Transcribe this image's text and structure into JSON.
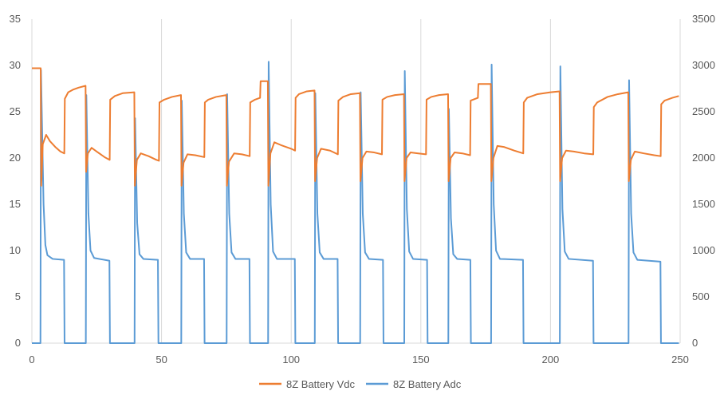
{
  "chart_data": {
    "type": "line",
    "title": "",
    "xlabel": "",
    "ylabel": "",
    "y2label": "",
    "xlim": [
      0,
      250
    ],
    "ylim": [
      0,
      35
    ],
    "y2lim": [
      0,
      3500
    ],
    "x_ticks": [
      0,
      50,
      100,
      150,
      200,
      250
    ],
    "y_ticks": [
      0,
      5,
      10,
      15,
      20,
      25,
      30,
      35
    ],
    "y2_ticks": [
      0,
      500,
      1000,
      1500,
      2000,
      2500,
      3000,
      3500
    ],
    "grid": "vertical",
    "legend_position": "bottom",
    "series": [
      {
        "name": "8Z Battery Vdc",
        "axis": "left",
        "color": "#ED7D31",
        "points": [
          [
            0,
            29.7
          ],
          [
            3.4,
            29.7
          ],
          [
            3.6,
            17.0
          ],
          [
            4.2,
            21.5
          ],
          [
            5.5,
            22.5
          ],
          [
            7,
            21.8
          ],
          [
            9,
            21.2
          ],
          [
            11,
            20.7
          ],
          [
            12.5,
            20.5
          ],
          [
            12.7,
            26.4
          ],
          [
            14,
            27.1
          ],
          [
            16,
            27.4
          ],
          [
            18,
            27.6
          ],
          [
            20.7,
            27.8
          ],
          [
            20.9,
            18.5
          ],
          [
            21.6,
            20.5
          ],
          [
            23,
            21.1
          ],
          [
            25,
            20.7
          ],
          [
            28,
            20.1
          ],
          [
            30,
            19.8
          ],
          [
            30.2,
            26.3
          ],
          [
            32,
            26.7
          ],
          [
            35,
            27.0
          ],
          [
            39.5,
            27.1
          ],
          [
            39.7,
            17.0
          ],
          [
            40.5,
            19.8
          ],
          [
            42,
            20.5
          ],
          [
            45,
            20.2
          ],
          [
            48,
            19.8
          ],
          [
            49,
            19.7
          ],
          [
            49.2,
            26.0
          ],
          [
            51,
            26.3
          ],
          [
            54,
            26.6
          ],
          [
            57.5,
            26.8
          ],
          [
            57.7,
            17.0
          ],
          [
            58.5,
            19.5
          ],
          [
            60,
            20.4
          ],
          [
            63,
            20.3
          ],
          [
            66.5,
            20.1
          ],
          [
            66.7,
            26.0
          ],
          [
            68,
            26.3
          ],
          [
            71,
            26.6
          ],
          [
            75,
            26.8
          ],
          [
            75.2,
            17.0
          ],
          [
            76,
            19.6
          ],
          [
            78,
            20.5
          ],
          [
            81,
            20.4
          ],
          [
            84,
            20.2
          ],
          [
            84.2,
            26.0
          ],
          [
            86,
            26.3
          ],
          [
            88,
            26.5
          ],
          [
            88.2,
            28.3
          ],
          [
            91,
            28.3
          ],
          [
            91.2,
            17.0
          ],
          [
            92,
            20.5
          ],
          [
            93.5,
            21.7
          ],
          [
            96,
            21.4
          ],
          [
            100,
            21.0
          ],
          [
            101.5,
            20.8
          ],
          [
            101.7,
            26.5
          ],
          [
            103,
            26.9
          ],
          [
            106,
            27.2
          ],
          [
            109,
            27.3
          ],
          [
            109.2,
            17.5
          ],
          [
            110,
            20.0
          ],
          [
            111.5,
            21.0
          ],
          [
            115,
            20.8
          ],
          [
            118,
            20.4
          ],
          [
            118.2,
            26.2
          ],
          [
            120,
            26.6
          ],
          [
            123,
            26.9
          ],
          [
            126.5,
            27.0
          ],
          [
            126.7,
            17.5
          ],
          [
            127.5,
            20.0
          ],
          [
            129,
            20.7
          ],
          [
            132,
            20.6
          ],
          [
            135,
            20.4
          ],
          [
            135.2,
            26.3
          ],
          [
            137,
            26.6
          ],
          [
            140,
            26.8
          ],
          [
            143.5,
            26.9
          ],
          [
            143.7,
            17.5
          ],
          [
            144.5,
            20.0
          ],
          [
            146,
            20.6
          ],
          [
            149,
            20.5
          ],
          [
            152,
            20.4
          ],
          [
            152.2,
            26.3
          ],
          [
            154,
            26.6
          ],
          [
            157,
            26.8
          ],
          [
            160.5,
            26.9
          ],
          [
            160.7,
            17.5
          ],
          [
            161.5,
            20.0
          ],
          [
            163,
            20.6
          ],
          [
            166,
            20.5
          ],
          [
            169,
            20.3
          ],
          [
            169.2,
            26.2
          ],
          [
            171,
            26.4
          ],
          [
            172,
            26.5
          ],
          [
            172.2,
            28.0
          ],
          [
            177,
            28.0
          ],
          [
            177.2,
            17.5
          ],
          [
            178,
            20.0
          ],
          [
            179.5,
            21.3
          ],
          [
            182,
            21.2
          ],
          [
            186,
            20.8
          ],
          [
            189.5,
            20.5
          ],
          [
            189.7,
            26.0
          ],
          [
            191,
            26.5
          ],
          [
            195,
            26.9
          ],
          [
            200,
            27.1
          ],
          [
            203.5,
            27.2
          ],
          [
            203.7,
            17.5
          ],
          [
            204.5,
            20.0
          ],
          [
            206,
            20.8
          ],
          [
            209,
            20.7
          ],
          [
            213,
            20.5
          ],
          [
            216.5,
            20.4
          ],
          [
            216.7,
            25.5
          ],
          [
            218,
            26.0
          ],
          [
            222,
            26.6
          ],
          [
            226,
            26.9
          ],
          [
            230,
            27.1
          ],
          [
            230.2,
            17.5
          ],
          [
            231,
            19.8
          ],
          [
            232.5,
            20.7
          ],
          [
            236,
            20.5
          ],
          [
            240,
            20.3
          ],
          [
            242.5,
            20.2
          ],
          [
            242.7,
            25.8
          ],
          [
            244,
            26.2
          ],
          [
            247,
            26.5
          ],
          [
            249.5,
            26.7
          ]
        ]
      },
      {
        "name": "8Z Battery Adc",
        "axis": "right",
        "color": "#5B9BD5",
        "points": [
          [
            0,
            0
          ],
          [
            3.3,
            0
          ],
          [
            3.5,
            2950
          ],
          [
            4.5,
            1500
          ],
          [
            5.2,
            1060
          ],
          [
            6,
            950
          ],
          [
            8,
            910
          ],
          [
            12.4,
            900
          ],
          [
            12.6,
            0
          ],
          [
            20.8,
            0
          ],
          [
            21.0,
            2680
          ],
          [
            21.8,
            1400
          ],
          [
            22.6,
            1000
          ],
          [
            24,
            920
          ],
          [
            29.9,
            890
          ],
          [
            30.1,
            0
          ],
          [
            39.6,
            0
          ],
          [
            39.8,
            2430
          ],
          [
            40.6,
            1300
          ],
          [
            41.5,
            960
          ],
          [
            43,
            910
          ],
          [
            48.6,
            900
          ],
          [
            48.8,
            0
          ],
          [
            57.6,
            0
          ],
          [
            57.8,
            2620
          ],
          [
            58.6,
            1400
          ],
          [
            59.5,
            980
          ],
          [
            61,
            910
          ],
          [
            66.4,
            910
          ],
          [
            66.6,
            0
          ],
          [
            75.1,
            0
          ],
          [
            75.3,
            2690
          ],
          [
            76.1,
            1400
          ],
          [
            77,
            980
          ],
          [
            78.5,
            910
          ],
          [
            83.9,
            910
          ],
          [
            84.1,
            0
          ],
          [
            91.1,
            0
          ],
          [
            91.3,
            3040
          ],
          [
            92.1,
            1500
          ],
          [
            93,
            990
          ],
          [
            94.5,
            910
          ],
          [
            101.4,
            910
          ],
          [
            101.6,
            0
          ],
          [
            109.1,
            0
          ],
          [
            109.3,
            2700
          ],
          [
            110.1,
            1400
          ],
          [
            111,
            980
          ],
          [
            112.5,
            910
          ],
          [
            117.9,
            910
          ],
          [
            118.1,
            0
          ],
          [
            126.6,
            0
          ],
          [
            126.8,
            2710
          ],
          [
            127.6,
            1400
          ],
          [
            128.5,
            980
          ],
          [
            130,
            910
          ],
          [
            135.4,
            900
          ],
          [
            135.6,
            0
          ],
          [
            143.6,
            0
          ],
          [
            143.8,
            2940
          ],
          [
            144.6,
            1450
          ],
          [
            145.5,
            990
          ],
          [
            147,
            910
          ],
          [
            152.4,
            900
          ],
          [
            152.6,
            0
          ],
          [
            160.6,
            0
          ],
          [
            160.8,
            2530
          ],
          [
            161.6,
            1350
          ],
          [
            162.5,
            960
          ],
          [
            164,
            910
          ],
          [
            169.1,
            900
          ],
          [
            169.3,
            0
          ],
          [
            177.1,
            0
          ],
          [
            177.3,
            3010
          ],
          [
            178.1,
            1500
          ],
          [
            179,
            1000
          ],
          [
            180.5,
            910
          ],
          [
            189.4,
            900
          ],
          [
            189.6,
            0
          ],
          [
            203.6,
            0
          ],
          [
            203.8,
            2990
          ],
          [
            204.6,
            1450
          ],
          [
            205.5,
            990
          ],
          [
            207,
            910
          ],
          [
            216.4,
            890
          ],
          [
            216.6,
            0
          ],
          [
            230.1,
            0
          ],
          [
            230.3,
            2840
          ],
          [
            231.1,
            1400
          ],
          [
            232,
            980
          ],
          [
            233.5,
            900
          ],
          [
            242.4,
            880
          ],
          [
            242.6,
            0
          ],
          [
            249.5,
            0
          ]
        ]
      }
    ]
  }
}
